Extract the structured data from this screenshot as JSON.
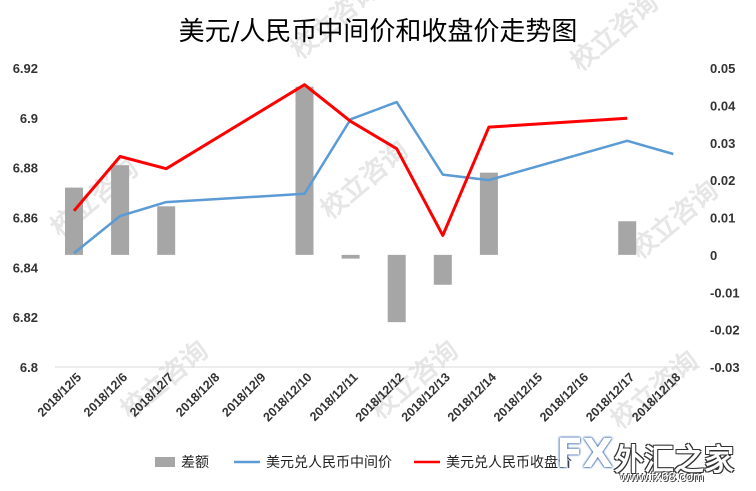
{
  "chart_data": {
    "type": "bar+line",
    "title": "美元/人民币中间价和收盘价走势图",
    "categories": [
      "2018/12/5",
      "2018/12/6",
      "2018/12/7",
      "2018/12/8",
      "2018/12/9",
      "2018/12/10",
      "2018/12/11",
      "2018/12/12",
      "2018/12/13",
      "2018/12/14",
      "2018/12/15",
      "2018/12/16",
      "2018/12/17",
      "2018/12/18"
    ],
    "left_axis": {
      "ylim": [
        6.8,
        6.92
      ],
      "ticks": [
        "6.8",
        "6.82",
        "6.84",
        "6.86",
        "6.88",
        "6.9",
        "6.92"
      ]
    },
    "right_axis": {
      "ylim": [
        -0.03,
        0.05
      ],
      "ticks": [
        "-0.03",
        "-0.02",
        "-0.01",
        "0",
        "0.01",
        "0.02",
        "0.03",
        "0.04",
        "0.05"
      ]
    },
    "series": [
      {
        "name": "差额",
        "kind": "bar",
        "axis": "right",
        "color": "#a6a6a6",
        "values": [
          0.018,
          0.024,
          0.013,
          null,
          null,
          0.045,
          -0.001,
          -0.018,
          -0.008,
          0.022,
          null,
          null,
          0.009,
          null
        ]
      },
      {
        "name": "美元兑人民币中间价",
        "kind": "line",
        "axis": "left",
        "color": "#5b9bd5",
        "values": [
          6.8457,
          6.8606,
          6.8662,
          null,
          null,
          6.8695,
          6.8994,
          6.9063,
          6.8772,
          6.875,
          null,
          null,
          6.8908,
          6.8855
        ]
      },
      {
        "name": "美元兑人民币收盘价",
        "kind": "line",
        "axis": "left",
        "color": "#ff0000",
        "values": [
          6.8627,
          6.8845,
          6.8796,
          null,
          null,
          6.9133,
          6.8986,
          6.8876,
          6.8528,
          6.8963,
          null,
          null,
          6.8998,
          null
        ]
      }
    ],
    "legend": {
      "position": "bottom",
      "labels": [
        "差额",
        "美元兑人民币中间价",
        "美元兑人民币收盘价"
      ]
    },
    "grid": false
  },
  "watermark": "校立咨询",
  "brand": {
    "name": "外汇之家",
    "prefix": "FX",
    "url": "www.fx68.com"
  }
}
